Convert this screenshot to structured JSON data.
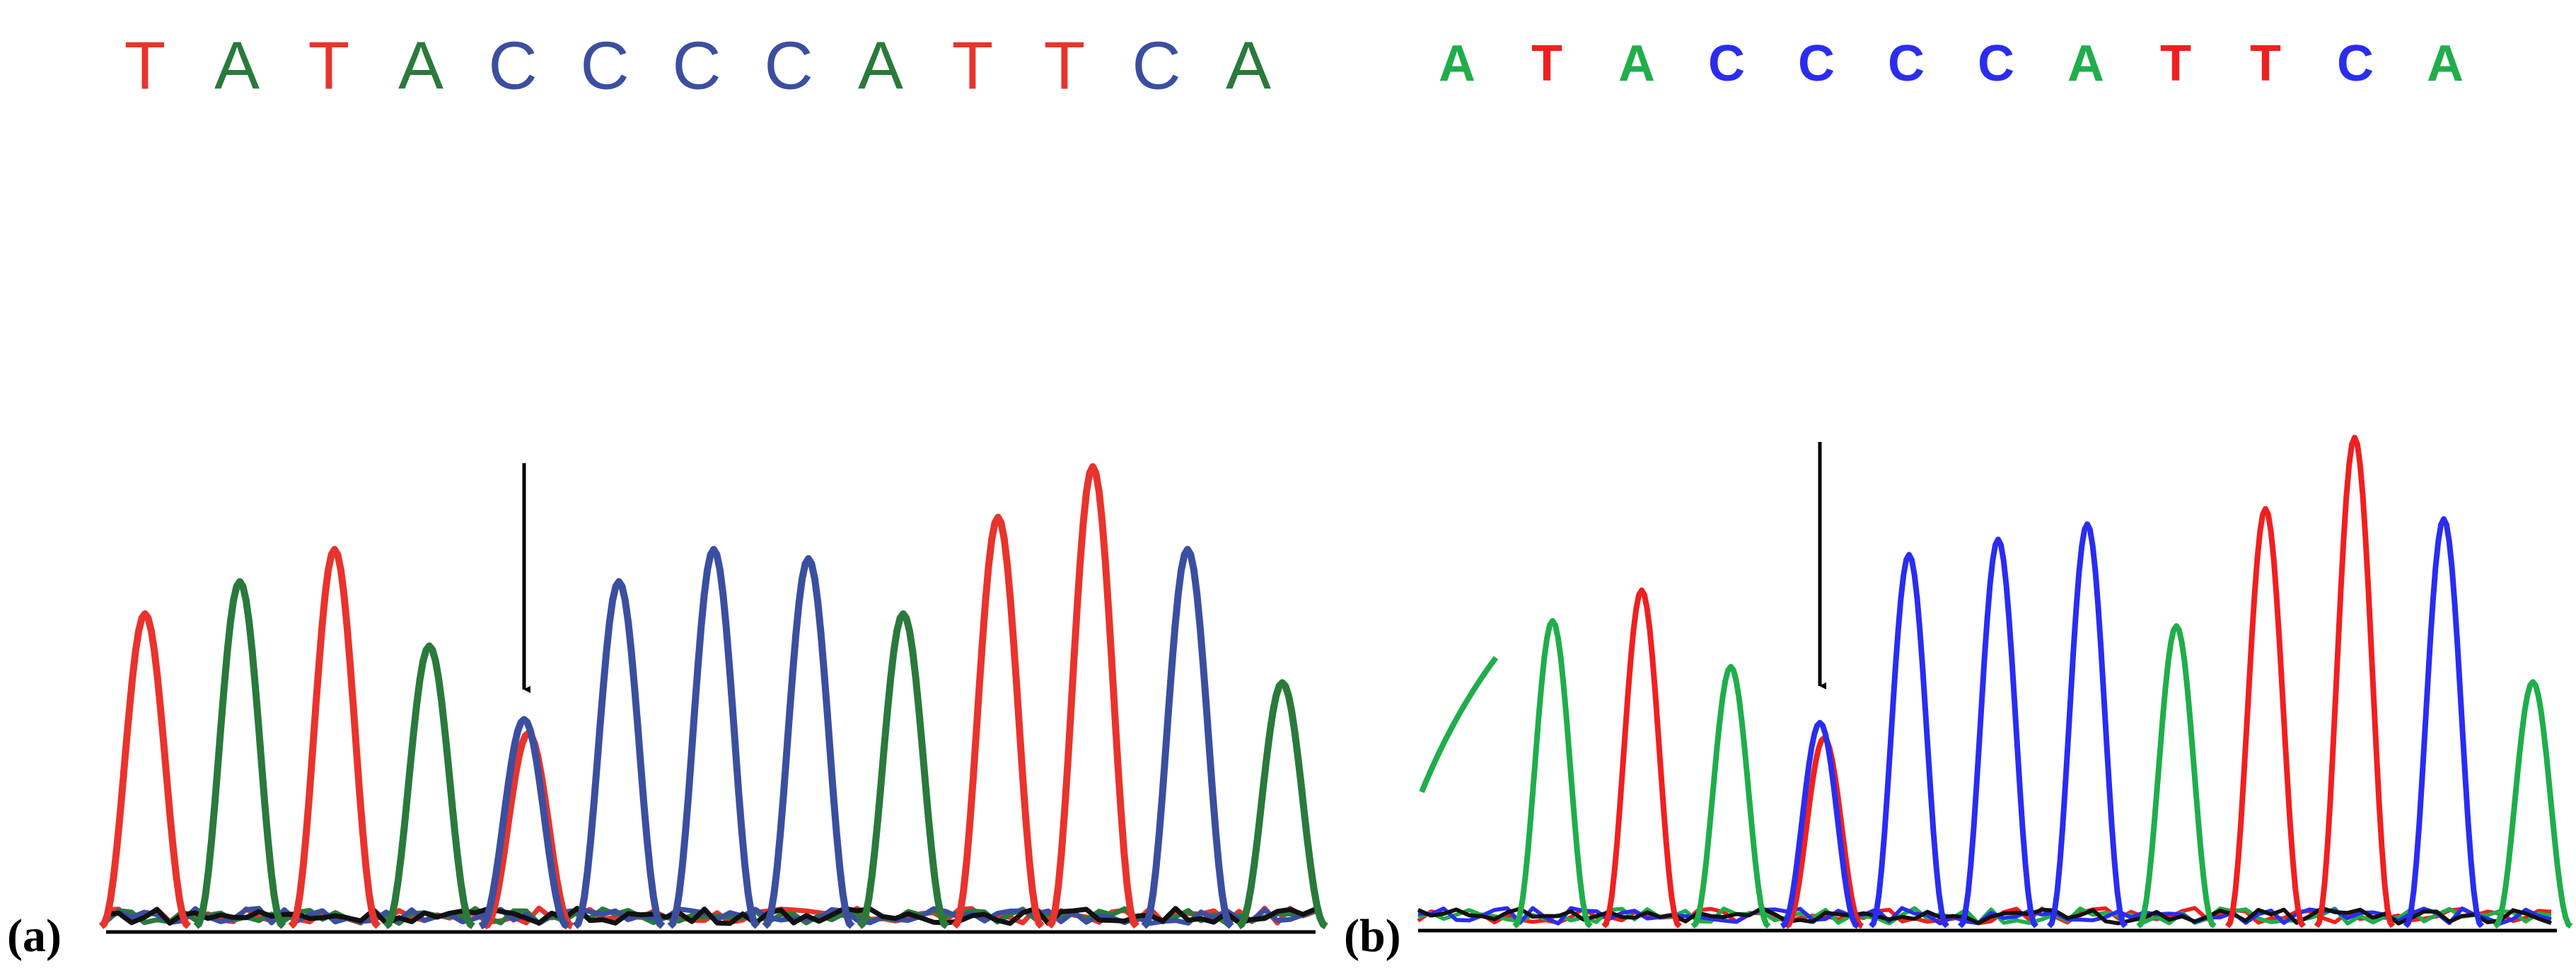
{
  "chart_data": [
    {
      "panel": "a",
      "type": "line",
      "panel_label": "(a)",
      "title": "",
      "xlabel": "",
      "ylabel": "",
      "sequence": [
        "T",
        "A",
        "T",
        "A",
        "C",
        "C",
        "C",
        "C",
        "A",
        "T",
        "T",
        "C",
        "A"
      ],
      "colors": {
        "A": "#2a7a3b",
        "C": "#3b4fa0",
        "G": "#111111",
        "T": "#e8342c"
      },
      "arrow_peak_index": 4,
      "peaks": [
        {
          "base": "T",
          "height": 0.68
        },
        {
          "base": "A",
          "height": 0.75
        },
        {
          "base": "T",
          "height": 0.82
        },
        {
          "base": "A",
          "height": 0.61
        },
        {
          "base": "C",
          "height": 0.45,
          "overlap": {
            "base": "T",
            "height": 0.42
          }
        },
        {
          "base": "C",
          "height": 0.75
        },
        {
          "base": "C",
          "height": 0.82
        },
        {
          "base": "C",
          "height": 0.8
        },
        {
          "base": "A",
          "height": 0.68
        },
        {
          "base": "T",
          "height": 0.89
        },
        {
          "base": "T",
          "height": 1.0
        },
        {
          "base": "C",
          "height": 0.82
        },
        {
          "base": "A",
          "height": 0.53
        }
      ]
    },
    {
      "panel": "b",
      "type": "line",
      "panel_label": "(b)",
      "title": "",
      "xlabel": "",
      "ylabel": "",
      "sequence": [
        "A",
        "T",
        "A",
        "C",
        "C",
        "C",
        "C",
        "A",
        "T",
        "T",
        "C",
        "A"
      ],
      "colors": {
        "A": "#1fae4a",
        "C": "#2a2df0",
        "G": "#111111",
        "T": "#f02020"
      },
      "arrow_peak_index": 3,
      "leading_partial_base": "A",
      "peaks": [
        {
          "base": "A",
          "height": 0.6
        },
        {
          "base": "T",
          "height": 0.66
        },
        {
          "base": "A",
          "height": 0.51
        },
        {
          "base": "C",
          "height": 0.4,
          "overlap": {
            "base": "T",
            "height": 0.37
          }
        },
        {
          "base": "C",
          "height": 0.73
        },
        {
          "base": "C",
          "height": 0.76
        },
        {
          "base": "C",
          "height": 0.79
        },
        {
          "base": "A",
          "height": 0.59
        },
        {
          "base": "T",
          "height": 0.82
        },
        {
          "base": "T",
          "height": 0.96
        },
        {
          "base": "C",
          "height": 0.8
        },
        {
          "base": "A",
          "height": 0.48
        }
      ]
    }
  ]
}
